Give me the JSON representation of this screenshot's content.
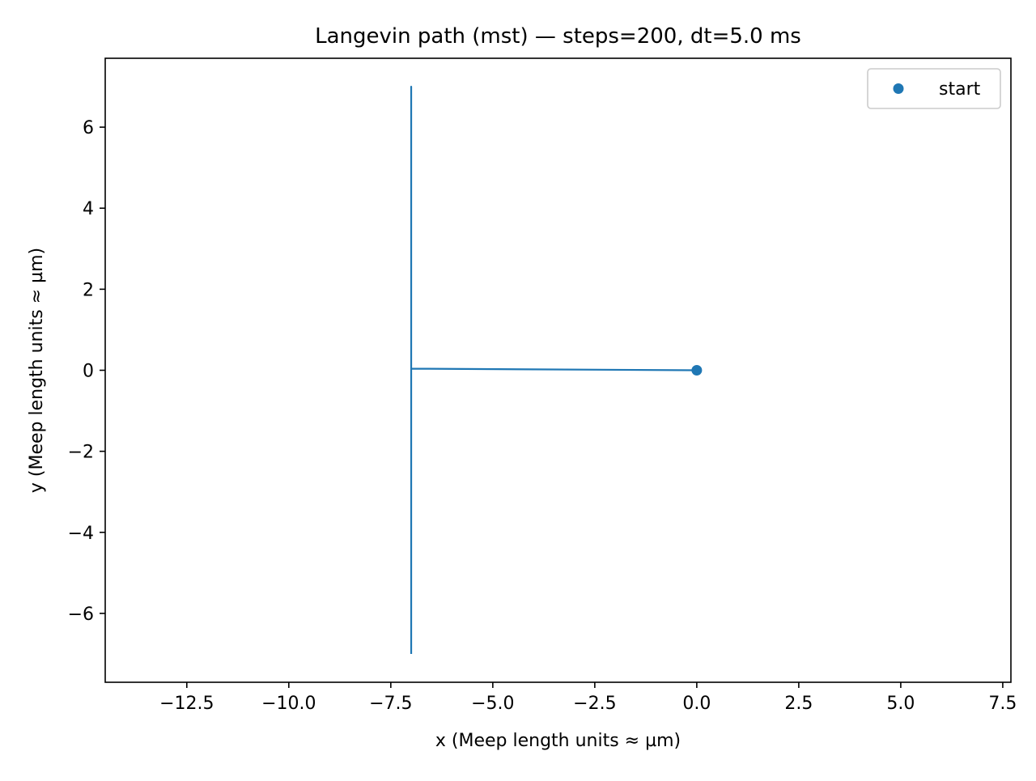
{
  "chart_data": {
    "type": "line",
    "title": "Langevin path (mst) — steps=200, dt=5.0 ms",
    "xlabel": "x (Meep length units ≈ µm)",
    "ylabel": "y (Meep length units ≈ µm)",
    "xlim": [
      -14.5,
      7.7
    ],
    "ylim": [
      -7.7,
      7.7
    ],
    "xticks": [
      -12.5,
      -10.0,
      -7.5,
      -5.0,
      -2.5,
      0.0,
      2.5,
      5.0,
      7.5
    ],
    "xtick_labels": [
      "−12.5",
      "−10.0",
      "−7.5",
      "−5.0",
      "−2.5",
      "0.0",
      "2.5",
      "5.0",
      "7.5"
    ],
    "yticks": [
      -6,
      -4,
      -2,
      0,
      2,
      4,
      6
    ],
    "ytick_labels": [
      "−6",
      "−4",
      "−2",
      "0",
      "2",
      "4",
      "6"
    ],
    "grid": false,
    "legend": {
      "placement": "top-right",
      "entries": [
        {
          "label": "start",
          "marker": "circle",
          "color": "#1f77b4"
        }
      ]
    },
    "series": [
      {
        "kind": "line",
        "color": "#1f77b4",
        "points": [
          [
            0.0,
            0.0
          ],
          [
            -7.0,
            0.04
          ],
          [
            -7.0,
            7.0
          ],
          [
            -7.0,
            -7.0
          ]
        ]
      },
      {
        "name": "start",
        "kind": "scatter",
        "color": "#1f77b4",
        "points": [
          [
            0.0,
            0.0
          ]
        ]
      }
    ]
  }
}
